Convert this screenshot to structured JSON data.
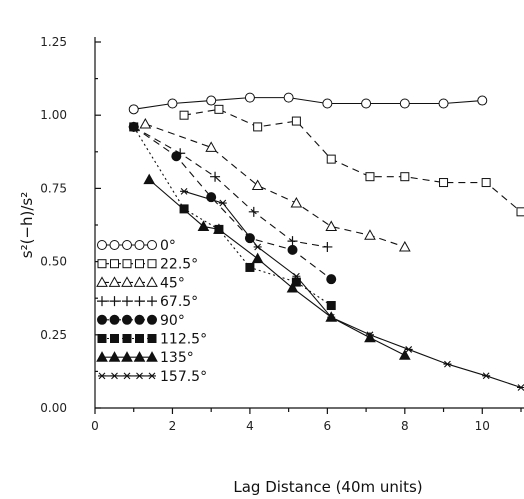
{
  "chart_data": {
    "type": "line",
    "xlabel": "Lag Distance (40m units)",
    "ylabel": "s²(−h)/s²",
    "xlim": [
      0,
      11
    ],
    "ylim": [
      0,
      1.25
    ],
    "x_ticks": [
      "0",
      "2",
      "4",
      "6",
      "8",
      "10"
    ],
    "y_ticks": [
      "0.00",
      "0.25",
      "0.50",
      "0.75",
      "1.00",
      "1.25"
    ],
    "grid": false,
    "legend_position": "bottom-left",
    "series": [
      {
        "name": "0°",
        "marker": "circle-open",
        "line": "solid",
        "x": [
          1,
          2,
          3,
          4,
          5,
          6,
          7,
          8,
          9,
          10
        ],
        "y": [
          1.02,
          1.04,
          1.05,
          1.06,
          1.06,
          1.04,
          1.04,
          1.04,
          1.04,
          1.05
        ]
      },
      {
        "name": "22.5°",
        "marker": "square-open",
        "line": "dashed",
        "x": [
          2.3,
          3.2,
          4.2,
          5.2,
          6.1,
          7.1,
          8.0,
          9.0,
          10.1,
          11.0
        ],
        "y": [
          1.0,
          1.02,
          0.96,
          0.98,
          0.85,
          0.79,
          0.79,
          0.77,
          0.77,
          0.67
        ]
      },
      {
        "name": "45°",
        "marker": "triangle-open",
        "line": "dashed",
        "x": [
          1.3,
          3.0,
          4.2,
          5.2,
          6.1,
          7.1,
          8.0
        ],
        "y": [
          0.97,
          0.89,
          0.76,
          0.7,
          0.62,
          0.59,
          0.55
        ]
      },
      {
        "name": "67.5°",
        "marker": "plus",
        "line": "dashed",
        "x": [
          1.0,
          2.2,
          3.1,
          4.1,
          5.1,
          6.0
        ],
        "y": [
          0.96,
          0.87,
          0.79,
          0.67,
          0.57,
          0.55
        ]
      },
      {
        "name": "90°",
        "marker": "circle-filled",
        "line": "dashed",
        "x": [
          1.0,
          2.1,
          3.0,
          4.0,
          5.1,
          6.1
        ],
        "y": [
          0.96,
          0.86,
          0.72,
          0.58,
          0.54,
          0.44
        ]
      },
      {
        "name": "112.5°",
        "marker": "square-filled",
        "line": "dotted",
        "x": [
          1.0,
          2.3,
          3.2,
          4.0,
          5.2,
          6.1
        ],
        "y": [
          0.96,
          0.68,
          0.61,
          0.48,
          0.43,
          0.35
        ]
      },
      {
        "name": "135°",
        "marker": "triangle-filled",
        "line": "solid",
        "x": [
          1.4,
          2.8,
          3.2,
          4.2,
          5.1,
          6.1,
          7.1,
          8.0
        ],
        "y": [
          0.78,
          0.62,
          0.61,
          0.51,
          0.41,
          0.31,
          0.24,
          0.18
        ]
      },
      {
        "name": "157.5°",
        "marker": "star",
        "line": "solid",
        "x": [
          2.3,
          3.3,
          4.2,
          5.2,
          6.1,
          7.1,
          8.1,
          9.1,
          10.1,
          11.0
        ],
        "y": [
          0.74,
          0.7,
          0.55,
          0.45,
          0.31,
          0.25,
          0.2,
          0.15,
          0.11,
          0.07
        ]
      }
    ]
  }
}
